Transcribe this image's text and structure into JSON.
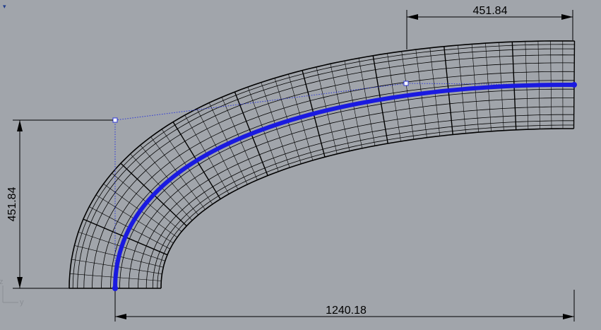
{
  "viewport": {
    "title": "",
    "menu_icon": "chevron-down-icon"
  },
  "dimensions": {
    "top": "451.84",
    "left": "451.84",
    "bottom": "1240.18"
  },
  "axes": {
    "vertical": "z",
    "horizontal": "y"
  },
  "colors": {
    "background": "#a1a5ab",
    "wireframe": "#000000",
    "rail_curve": "#1a1ae0",
    "control_polygon": "#2a35d8",
    "dimension_lines": "#000000"
  }
}
